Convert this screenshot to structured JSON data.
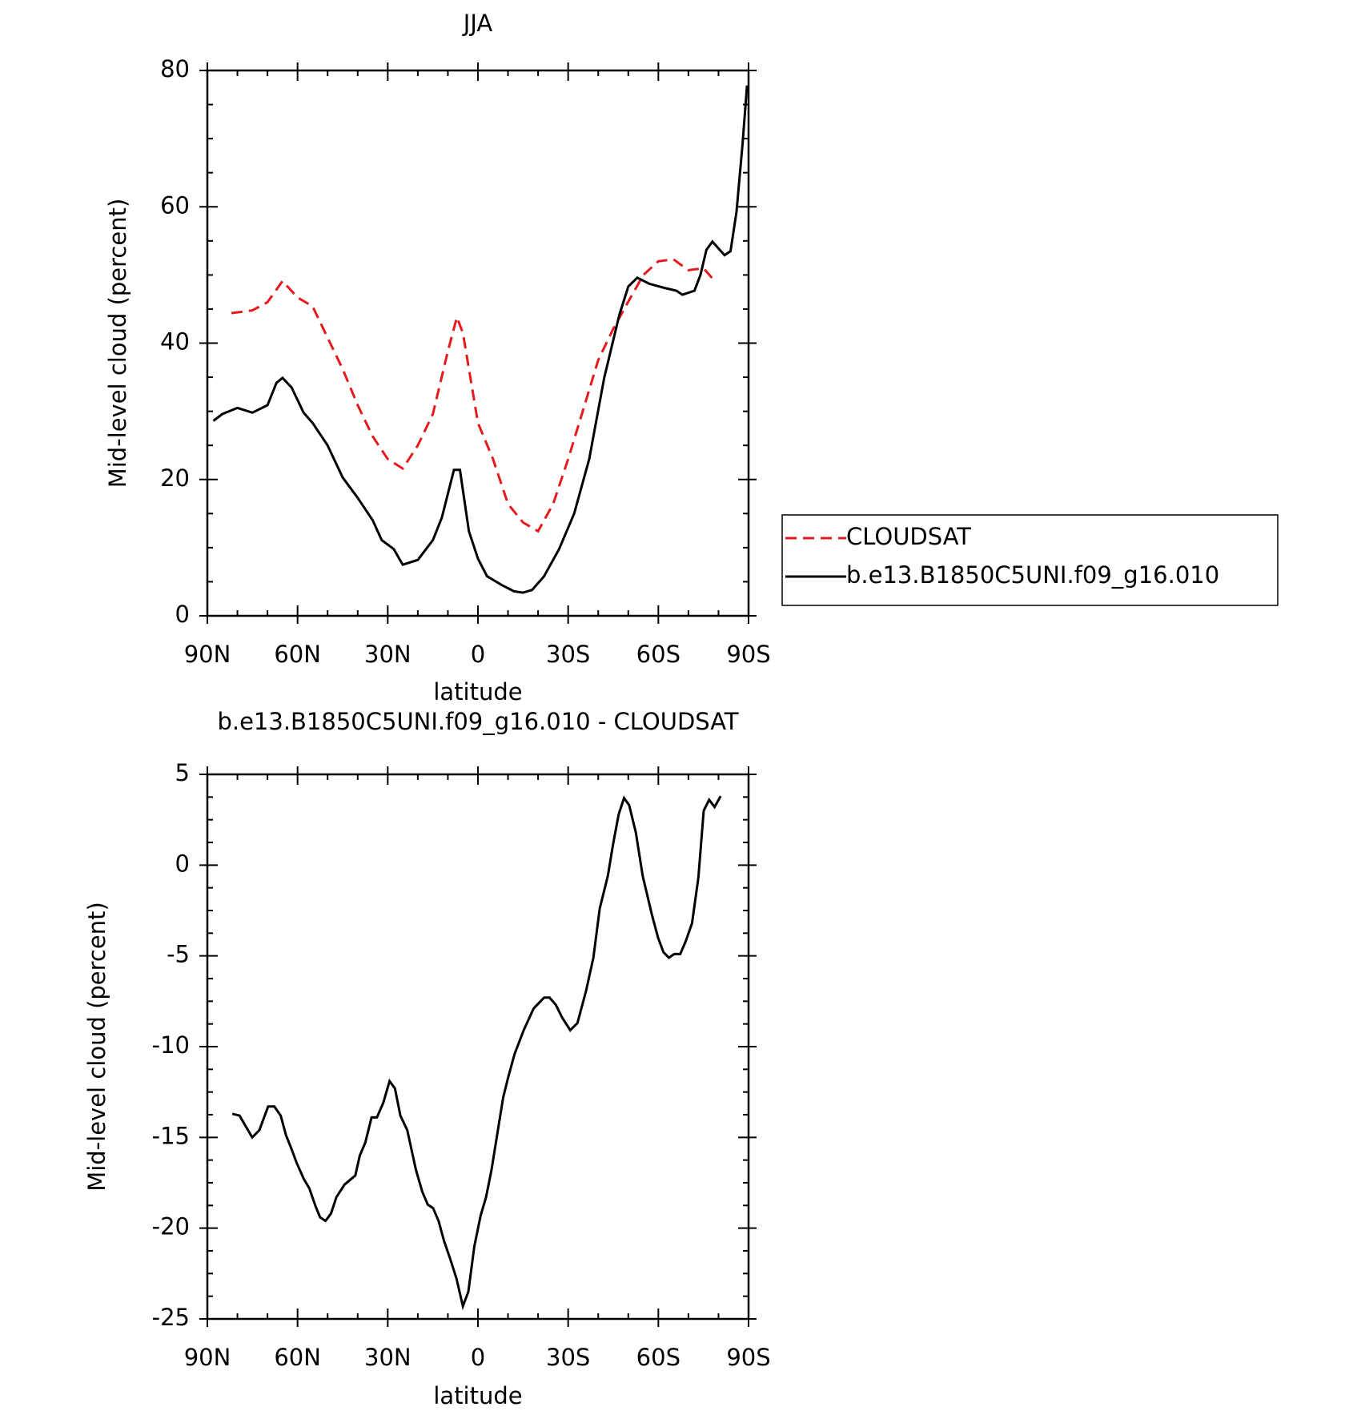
{
  "chart_data": [
    {
      "type": "line",
      "title": "JJA",
      "xlabel": "latitude",
      "ylabel": "Mid-level cloud (percent)",
      "xlim": [
        90,
        -90
      ],
      "ylim": [
        0,
        80
      ],
      "xticks": [
        {
          "value": 90,
          "label": "90N"
        },
        {
          "value": 60,
          "label": "60N"
        },
        {
          "value": 30,
          "label": "30N"
        },
        0,
        {
          "value": -30,
          "label": "30S"
        },
        {
          "value": -60,
          "label": "60S"
        },
        {
          "value": -90,
          "label": "90S"
        }
      ],
      "yticks": [
        0,
        20,
        40,
        60,
        80
      ],
      "legend": "right",
      "series": [
        {
          "name": "CLOUDSAT",
          "color": "#e41a1c",
          "style": "dashed",
          "x": [
            82,
            75,
            70,
            65,
            60,
            55,
            50,
            45,
            40,
            35,
            30,
            25,
            20,
            15,
            10,
            7,
            5,
            0,
            -5,
            -10,
            -15,
            -20,
            -25,
            -30,
            -35,
            -40,
            -45,
            -50,
            -55,
            -60,
            -65,
            -70,
            -75,
            -79
          ],
          "values": [
            44.4,
            44.8,
            46,
            49.1,
            46.7,
            45.4,
            40.8,
            36.2,
            30.9,
            26.3,
            23,
            21.6,
            25,
            29.6,
            38.8,
            43.8,
            41.5,
            28.3,
            23,
            16.4,
            13.7,
            12.4,
            16.4,
            23,
            30.2,
            37.5,
            42.1,
            46.1,
            50,
            52,
            52.3,
            50.7,
            51,
            49
          ]
        },
        {
          "name": "b.e13.B1850C5UNI.f09_g16.010",
          "color": "#000000",
          "style": "solid",
          "x": [
            88,
            85,
            80,
            75,
            70,
            67,
            65,
            62,
            58,
            55,
            50,
            45,
            40,
            35,
            32,
            28,
            25,
            20,
            15,
            12,
            8,
            6,
            3,
            0,
            -3,
            -8,
            -12,
            -15,
            -18,
            -22,
            -27,
            -32,
            -37,
            -42,
            -47,
            -50,
            -53,
            -57,
            -62,
            -66,
            -68,
            -72,
            -74,
            -76,
            -78,
            -82,
            -84,
            -86,
            -88,
            -89.5
          ],
          "values": [
            28.6,
            29.6,
            30.5,
            29.8,
            30.9,
            34.2,
            34.9,
            33.5,
            29.8,
            28.3,
            25,
            20.3,
            17.3,
            14,
            11.1,
            9.8,
            7.5,
            8.2,
            11.1,
            14.4,
            21.4,
            21.4,
            12.4,
            8.4,
            5.8,
            4.5,
            3.6,
            3.4,
            3.8,
            5.8,
            9.8,
            15,
            23,
            34.9,
            44.1,
            48.3,
            49.6,
            48.7,
            48.1,
            47.7,
            47.1,
            47.7,
            50,
            53.7,
            54.9,
            52.9,
            53.5,
            59.3,
            69.2,
            77.8
          ]
        }
      ]
    },
    {
      "type": "line",
      "title": "b.e13.B1850C5UNI.f09_g16.010 - CLOUDSAT",
      "xlabel": "latitude",
      "ylabel": "Mid-level cloud (percent)",
      "xlim": [
        90,
        -90
      ],
      "ylim": [
        -25,
        5
      ],
      "xticks": [
        {
          "value": 90,
          "label": "90N"
        },
        {
          "value": 60,
          "label": "60N"
        },
        {
          "value": 30,
          "label": "30N"
        },
        0,
        {
          "value": -30,
          "label": "30S"
        },
        {
          "value": -60,
          "label": "60S"
        },
        {
          "value": -90,
          "label": "90S"
        }
      ],
      "yticks": [
        -25,
        -20,
        -15,
        -10,
        -5,
        0,
        5
      ],
      "series": [
        {
          "color": "#000000",
          "style": "solid",
          "x": [
            81.7,
            79.3,
            75.1,
            72.7,
            69.8,
            67.7,
            65.6,
            63.8,
            62.1,
            60.3,
            57.9,
            56.1,
            54,
            52.5,
            50.7,
            48.9,
            47.1,
            44.4,
            40.8,
            39.3,
            37.5,
            35.4,
            33.6,
            31.5,
            29.4,
            27.6,
            25.8,
            23.5,
            20.6,
            18.5,
            16.7,
            14.9,
            13.1,
            11.3,
            9.2,
            7.1,
            5,
            3.2,
            1.2,
            -0.9,
            -2.7,
            -4.5,
            -8.4,
            -10.2,
            -12.2,
            -15.2,
            -18.5,
            -22,
            -23.8,
            -25.9,
            -28,
            -30.7,
            -33.1,
            -36,
            -38.4,
            -40.5,
            -43.2,
            -45,
            -46.8,
            -48.6,
            -50.3,
            -52.5,
            -54.8,
            -57.8,
            -59.9,
            -61.7,
            -63.5,
            -65.3,
            -67.3,
            -69.1,
            -71.2,
            -73.3,
            -75.1,
            -76.9,
            -78.7,
            -80.7
          ],
          "values": [
            -13.7,
            -13.8,
            -15,
            -14.6,
            -13.3,
            -13.3,
            -13.8,
            -14.9,
            -15.6,
            -16.4,
            -17.3,
            -17.8,
            -18.8,
            -19.4,
            -19.6,
            -19.2,
            -18.3,
            -17.6,
            -17.1,
            -16,
            -15.3,
            -13.9,
            -13.9,
            -13.1,
            -11.9,
            -12.3,
            -13.8,
            -14.6,
            -16.8,
            -18,
            -18.7,
            -18.9,
            -19.6,
            -20.7,
            -21.7,
            -22.8,
            -24.3,
            -23.5,
            -21,
            -19.3,
            -18.3,
            -16.8,
            -12.8,
            -11.6,
            -10.4,
            -9.1,
            -7.9,
            -7.3,
            -7.3,
            -7.7,
            -8.4,
            -9.1,
            -8.7,
            -6.9,
            -5.1,
            -2.4,
            -0.6,
            1.2,
            2.8,
            3.7,
            3.3,
            1.8,
            -0.6,
            -2.7,
            -4,
            -4.8,
            -5.1,
            -4.9,
            -4.9,
            -4.2,
            -3.2,
            -0.7,
            3,
            3.6,
            3.2,
            3.8
          ]
        }
      ]
    }
  ]
}
